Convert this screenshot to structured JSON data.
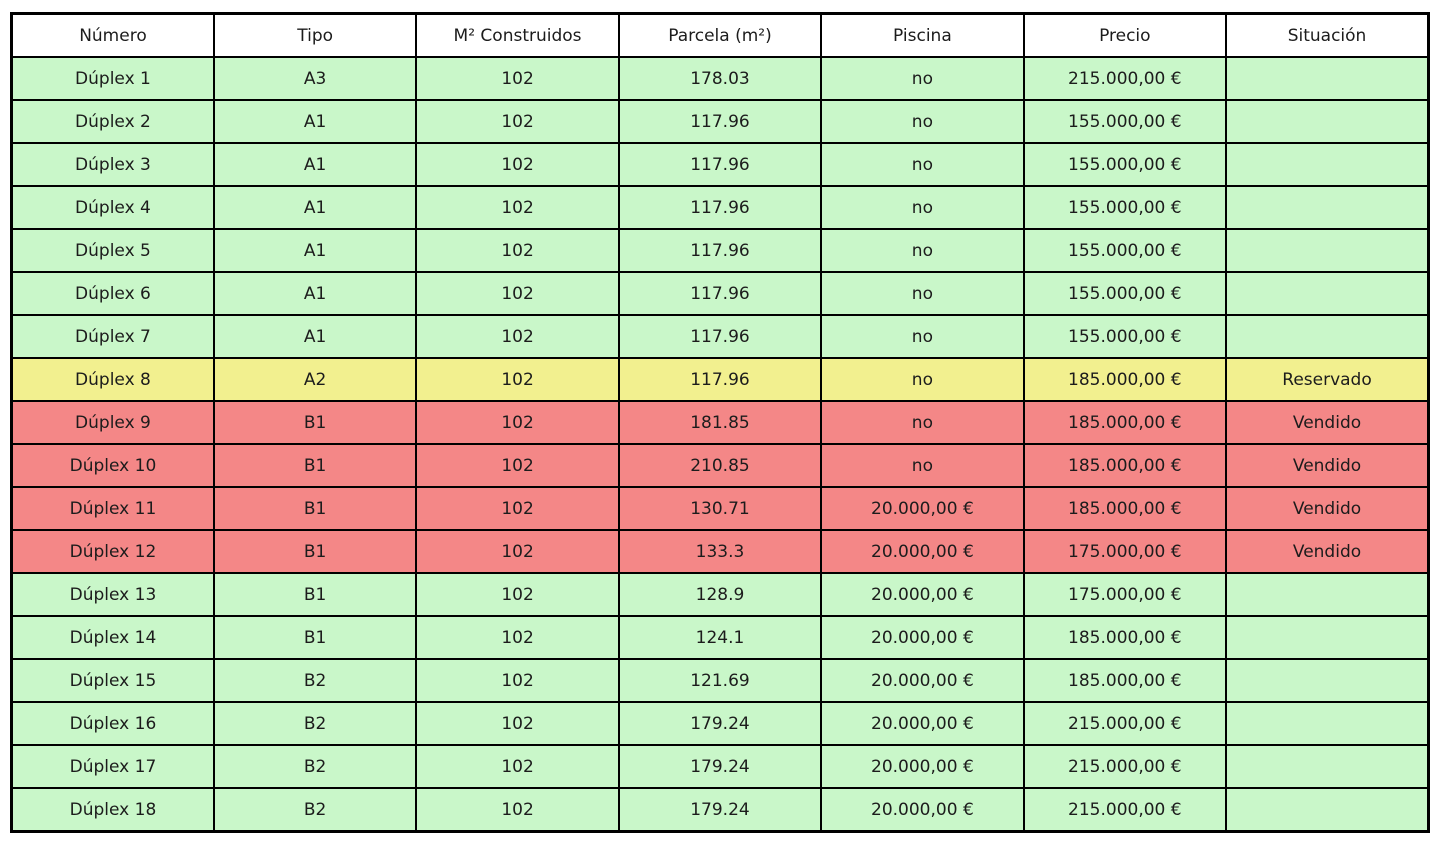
{
  "chart_data": {
    "type": "table",
    "title": "",
    "columns": [
      "Número",
      "Tipo",
      "M² Construidos",
      "Parcela (m²)",
      "Piscina",
      "Precio",
      "Situación"
    ],
    "rows": [
      {
        "status": "available",
        "cells": [
          "Dúplex 1",
          "A3",
          "102",
          "178.03",
          "no",
          "215.000,00 €",
          ""
        ]
      },
      {
        "status": "available",
        "cells": [
          "Dúplex 2",
          "A1",
          "102",
          "117.96",
          "no",
          "155.000,00 €",
          ""
        ]
      },
      {
        "status": "available",
        "cells": [
          "Dúplex 3",
          "A1",
          "102",
          "117.96",
          "no",
          "155.000,00 €",
          ""
        ]
      },
      {
        "status": "available",
        "cells": [
          "Dúplex 4",
          "A1",
          "102",
          "117.96",
          "no",
          "155.000,00 €",
          ""
        ]
      },
      {
        "status": "available",
        "cells": [
          "Dúplex 5",
          "A1",
          "102",
          "117.96",
          "no",
          "155.000,00 €",
          ""
        ]
      },
      {
        "status": "available",
        "cells": [
          "Dúplex 6",
          "A1",
          "102",
          "117.96",
          "no",
          "155.000,00 €",
          ""
        ]
      },
      {
        "status": "available",
        "cells": [
          "Dúplex 7",
          "A1",
          "102",
          "117.96",
          "no",
          "155.000,00 €",
          ""
        ]
      },
      {
        "status": "reserved",
        "cells": [
          "Dúplex 8",
          "A2",
          "102",
          "117.96",
          "no",
          "185.000,00 €",
          "Reservado"
        ]
      },
      {
        "status": "sold",
        "cells": [
          "Dúplex 9",
          "B1",
          "102",
          "181.85",
          "no",
          "185.000,00 €",
          "Vendido"
        ]
      },
      {
        "status": "sold",
        "cells": [
          "Dúplex 10",
          "B1",
          "102",
          "210.85",
          "no",
          "185.000,00 €",
          "Vendido"
        ]
      },
      {
        "status": "sold",
        "cells": [
          "Dúplex 11",
          "B1",
          "102",
          "130.71",
          "20.000,00 €",
          "185.000,00 €",
          "Vendido"
        ]
      },
      {
        "status": "sold",
        "cells": [
          "Dúplex 12",
          "B1",
          "102",
          "133.3",
          "20.000,00 €",
          "175.000,00 €",
          "Vendido"
        ]
      },
      {
        "status": "available",
        "cells": [
          "Dúplex 13",
          "B1",
          "102",
          "128.9",
          "20.000,00 €",
          "175.000,00 €",
          ""
        ]
      },
      {
        "status": "available",
        "cells": [
          "Dúplex 14",
          "B1",
          "102",
          "124.1",
          "20.000,00 €",
          "185.000,00 €",
          ""
        ]
      },
      {
        "status": "available",
        "cells": [
          "Dúplex 15",
          "B2",
          "102",
          "121.69",
          "20.000,00 €",
          "185.000,00 €",
          ""
        ]
      },
      {
        "status": "available",
        "cells": [
          "Dúplex 16",
          "B2",
          "102",
          "179.24",
          "20.000,00 €",
          "215.000,00 €",
          ""
        ]
      },
      {
        "status": "available",
        "cells": [
          "Dúplex 17",
          "B2",
          "102",
          "179.24",
          "20.000,00 €",
          "215.000,00 €",
          ""
        ]
      },
      {
        "status": "available",
        "cells": [
          "Dúplex 18",
          "B2",
          "102",
          "179.24",
          "20.000,00 €",
          "215.000,00 €",
          ""
        ]
      }
    ],
    "colors": {
      "available": "#c9f7c9",
      "reserved": "#f2f08f",
      "sold": "#f48787",
      "header_background": "#ffffff",
      "border": "#000000"
    }
  }
}
